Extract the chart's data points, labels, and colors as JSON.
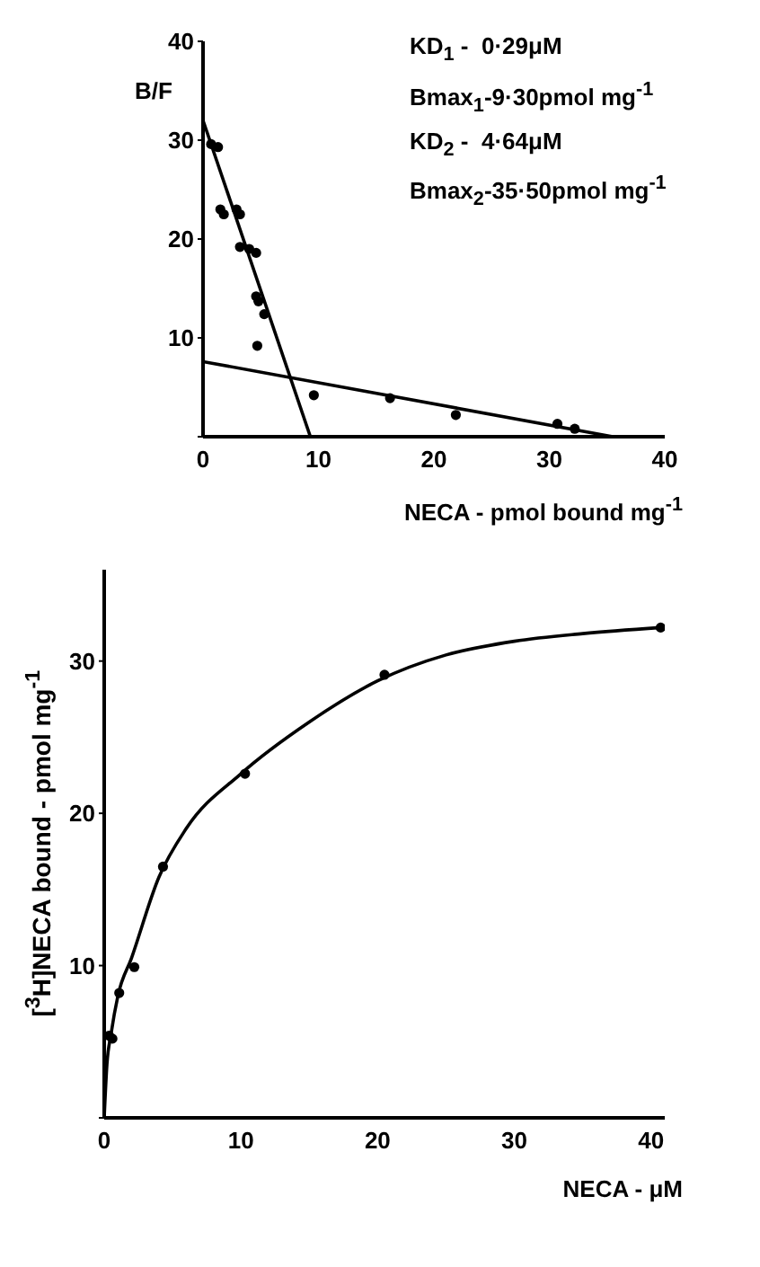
{
  "chart_data": [
    {
      "type": "scatter",
      "xlabel": "NECA - pmol bound mg$^{-1}$",
      "ylabel": "B/F",
      "annotations": [
        "KD$_{1}$ -  0·29μM",
        "Bmax$_{1}$-9·30pmol mg$^{-1}$",
        "KD$_{2}$ -  4·64μM",
        "Bmax$_{2}$-35·50pmol mg$^{-1}$"
      ],
      "xlim": [
        0,
        40
      ],
      "xticks": [
        0,
        10,
        20,
        30,
        40
      ],
      "ylim": [
        0,
        40
      ],
      "yticks": [
        {
          "value": 0,
          "label": null
        },
        10,
        20,
        30,
        40
      ],
      "grid": false,
      "legend": false,
      "marker": "circle",
      "series": [
        {
          "color": "#000000",
          "x": [
            0.7,
            1.3,
            1.5,
            1.8,
            2.9,
            3.2,
            3.2,
            4.0,
            4.6,
            4.6,
            4.8,
            5.3,
            4.7,
            9.6,
            16.2,
            21.9,
            30.7,
            32.2
          ],
          "values": [
            29.6,
            29.3,
            23.0,
            22.5,
            23.0,
            22.5,
            19.2,
            19.0,
            18.6,
            14.2,
            13.7,
            12.4,
            9.2,
            4.2,
            3.9,
            2.2,
            1.3,
            0.8
          ]
        },
        {
          "type": "line",
          "marker": "none",
          "color": "#000000",
          "x": [
            0,
            9.3
          ],
          "values": [
            32,
            0
          ]
        },
        {
          "type": "line",
          "marker": "none",
          "color": "#000000",
          "x": [
            0,
            35.5
          ],
          "values": [
            7.6,
            0
          ]
        }
      ]
    },
    {
      "type": "scatter",
      "xlabel": "NECA - μM",
      "ylabel": "[$^{3}$H]NECA bound - pmol mg$^{-1}$",
      "xlim": [
        0,
        41
      ],
      "xticks": [
        0,
        10,
        20,
        30,
        40
      ],
      "ylim": [
        0,
        36
      ],
      "yticks": [
        {
          "value": 0,
          "label": null
        },
        10,
        20,
        30
      ],
      "grid": false,
      "legend": false,
      "marker": "circle",
      "series": [
        {
          "color": "#000000",
          "x": [
            0.35,
            0.6,
            1.1,
            2.2,
            4.3,
            10.3,
            20.5,
            40.7
          ],
          "values": [
            5.4,
            5.2,
            8.2,
            9.9,
            16.5,
            22.6,
            29.1,
            32.2
          ]
        },
        {
          "type": "line",
          "marker": "none",
          "color": "#000000",
          "x": [
            0,
            0.2,
            0.5,
            1,
            2,
            4,
            6,
            10,
            15,
            20,
            25,
            30,
            35,
            40.7
          ],
          "values": [
            0,
            3.5,
            5.5,
            8,
            10.5,
            15.8,
            19,
            22.6,
            26,
            28.7,
            30.4,
            31.3,
            31.8,
            32.2
          ]
        }
      ]
    }
  ]
}
